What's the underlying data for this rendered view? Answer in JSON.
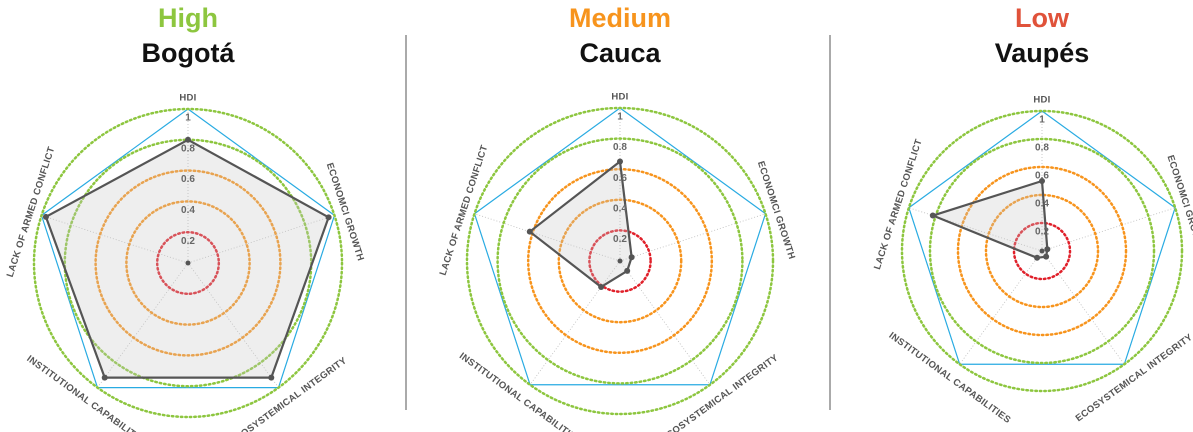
{
  "chart_data": [
    {
      "type": "radar",
      "title": "High",
      "title_color": "#8dc63f",
      "subtitle": "Bogotá",
      "categories": [
        "HDI",
        "ECONOMCI GROWTH",
        "ECOSYSTEMICAL INTEGRITY",
        "INSTITUTIONAL CAPABILITIES",
        "LACK OF ARMED CONFLICT"
      ],
      "values": [
        0.8,
        0.96,
        0.92,
        0.92,
        0.97
      ],
      "ylim": [
        0,
        1
      ],
      "yticks": [
        0.2,
        0.4,
        0.6,
        0.8,
        1
      ],
      "ring_colors": [
        "#e0202a",
        "#f7941d",
        "#f7941d",
        "#8dc63f",
        "#8dc63f"
      ],
      "frame_color": "#29abe2",
      "color": "#555555"
    },
    {
      "type": "radar",
      "title": "Medium",
      "title_color": "#f7941d",
      "subtitle": "Cauca",
      "categories": [
        "HDI",
        "ECONOMCI GROWTH",
        "ECOSYSTEMICAL INTEGRITY",
        "INSTITUTIONAL CAPABILITIES",
        "LACK OF ARMED CONFLICT"
      ],
      "values": [
        0.65,
        0.08,
        0.08,
        0.21,
        0.62
      ],
      "ylim": [
        0,
        1
      ],
      "yticks": [
        0.2,
        0.4,
        0.6,
        0.8,
        1
      ],
      "ring_colors": [
        "#e0202a",
        "#f7941d",
        "#f7941d",
        "#8dc63f",
        "#8dc63f"
      ],
      "frame_color": "#29abe2",
      "color": "#555555"
    },
    {
      "type": "radar",
      "title": "Low",
      "title_color": "#e0523a",
      "subtitle": "Vaupés",
      "categories": [
        "HDI",
        "ECONOMCI GROWTH",
        "ECOSYSTEMICAL INTEGRITY",
        "INSTITUTIONAL CAPABILITIES",
        "LACK OF ARMED CONFLICT"
      ],
      "values": [
        0.5,
        0.04,
        0.05,
        0.06,
        0.82
      ],
      "ylim": [
        0,
        1
      ],
      "yticks": [
        0.2,
        0.4,
        0.6,
        0.8,
        1
      ],
      "ring_colors": [
        "#e0202a",
        "#f7941d",
        "#f7941d",
        "#8dc63f",
        "#8dc63f"
      ],
      "frame_color": "#29abe2",
      "color": "#555555"
    }
  ]
}
